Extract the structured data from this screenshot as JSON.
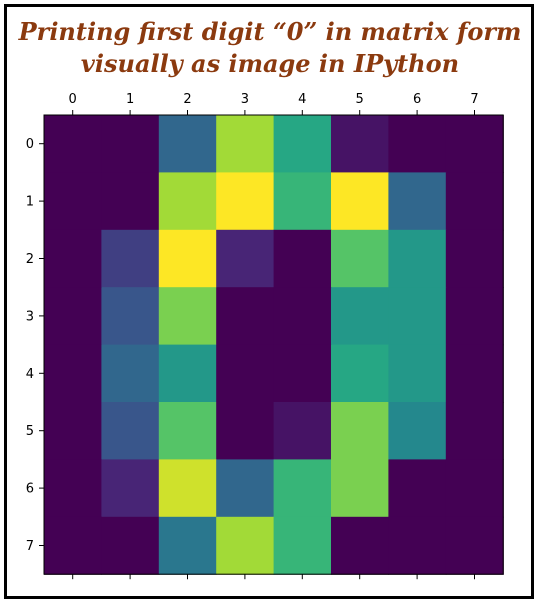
{
  "title": {
    "line1": "Printing first digit “0” in matrix form",
    "line2": "visually as image in IPython",
    "color": "#8B3A0F"
  },
  "chart_data": {
    "type": "heatmap",
    "colormap": "viridis",
    "vmin": 0,
    "vmax": 15,
    "x_ticks": [
      "0",
      "1",
      "2",
      "3",
      "4",
      "5",
      "6",
      "7"
    ],
    "y_ticks": [
      "0",
      "1",
      "2",
      "3",
      "4",
      "5",
      "6",
      "7"
    ],
    "x_tick_position": "top-and-bottom",
    "grid": false,
    "matrix": [
      [
        0,
        0,
        5,
        13,
        9,
        1,
        0,
        0
      ],
      [
        0,
        0,
        13,
        15,
        10,
        15,
        5,
        0
      ],
      [
        0,
        3,
        15,
        2,
        0,
        11,
        8,
        0
      ],
      [
        0,
        4,
        12,
        0,
        0,
        8,
        8,
        0
      ],
      [
        0,
        5,
        8,
        0,
        0,
        9,
        8,
        0
      ],
      [
        0,
        4,
        11,
        0,
        1,
        12,
        7,
        0
      ],
      [
        0,
        2,
        14,
        5,
        10,
        12,
        0,
        0
      ],
      [
        0,
        0,
        6,
        13,
        10,
        0,
        0,
        0
      ]
    ]
  }
}
